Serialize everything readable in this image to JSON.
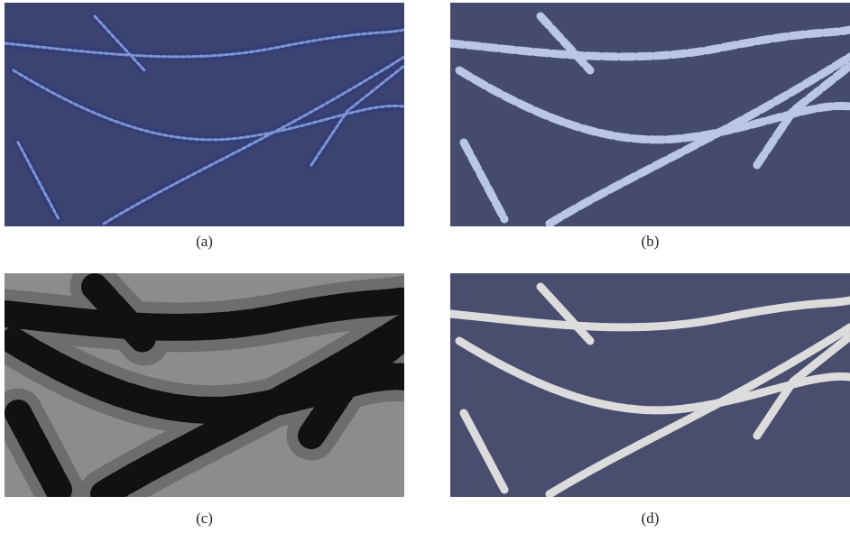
{
  "panels": [
    {
      "label": "(a)"
    },
    {
      "label": "(b)"
    },
    {
      "label": "(c)"
    },
    {
      "label": "(d)"
    }
  ]
}
